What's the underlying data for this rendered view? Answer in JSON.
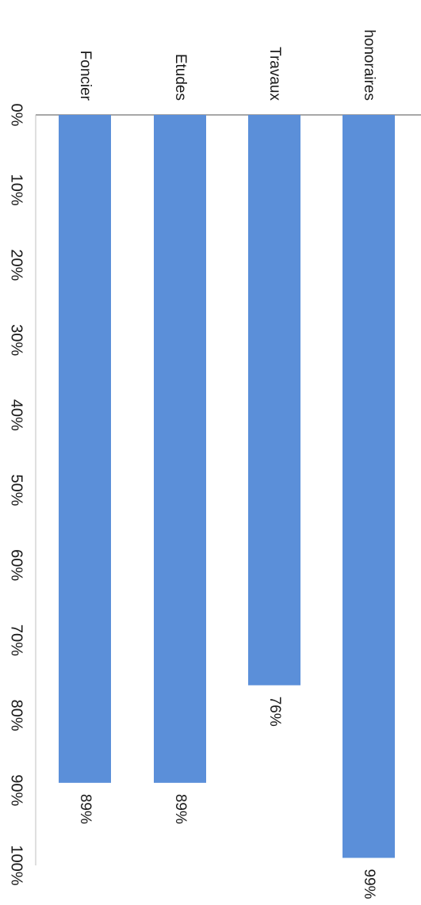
{
  "chart_data": {
    "type": "bar",
    "orientation": "horizontal",
    "categories": [
      "Foncier",
      "Etudes",
      "Travaux",
      "honoraires"
    ],
    "values": [
      89,
      89,
      76,
      99
    ],
    "data_labels": [
      "89%",
      "89%",
      "76%",
      "99%"
    ],
    "value_unit": "%",
    "xlim": [
      0,
      100
    ],
    "ticks": [
      "0%",
      "10%",
      "20%",
      "30%",
      "40%",
      "50%",
      "60%",
      "70%",
      "80%",
      "90%",
      "100%"
    ],
    "grid": false,
    "bar_color": "#5b8fd9",
    "title": "",
    "xlabel": "",
    "ylabel": ""
  }
}
